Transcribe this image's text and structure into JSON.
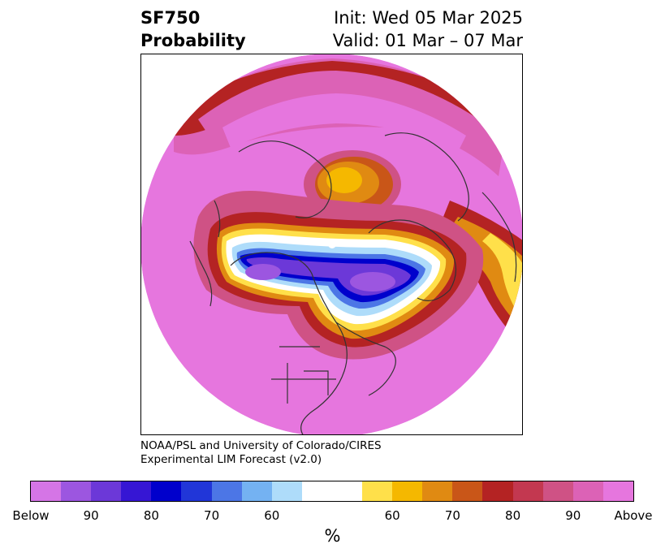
{
  "title": {
    "left_line1": "SF750",
    "left_line2": "Probability",
    "right_line1": "Init: Wed 05 Mar 2025",
    "right_line2": "Valid: 01 Mar – 07 Mar"
  },
  "credit": {
    "line1": "NOAA/PSL and University of Colorado/CIRES",
    "line2": "Experimental LIM Forecast (v2.0)"
  },
  "colorbar": {
    "colors": [
      "#d575e6",
      "#9c56e0",
      "#6c38d8",
      "#3616d4",
      "#0000cc",
      "#2136d8",
      "#4c76e6",
      "#74b2f2",
      "#aedcfa",
      "#ffffff",
      "#ffffff",
      "#ffe04a",
      "#f5b800",
      "#e08a12",
      "#c95618",
      "#b42323",
      "#c33850",
      "#cf5285",
      "#dc62b6",
      "#e676de"
    ],
    "tick_labels": [
      "Below",
      "90",
      "80",
      "70",
      "60",
      "60",
      "70",
      "80",
      "90",
      "Above"
    ],
    "unit": "%"
  },
  "map_colors": {
    "above_max": "#e676de",
    "above_90": "#dc62b6",
    "above_80": "#cf5285",
    "above_70": "#b42323",
    "above_60": "#e08a12",
    "neutral_yellow": "#ffe04a",
    "below_60": "#aedcfa",
    "below_70": "#4c76e6",
    "below_80": "#0000cc",
    "below_90": "#6c38d8",
    "below_max": "#9c56e0",
    "coastline": "#333333"
  }
}
